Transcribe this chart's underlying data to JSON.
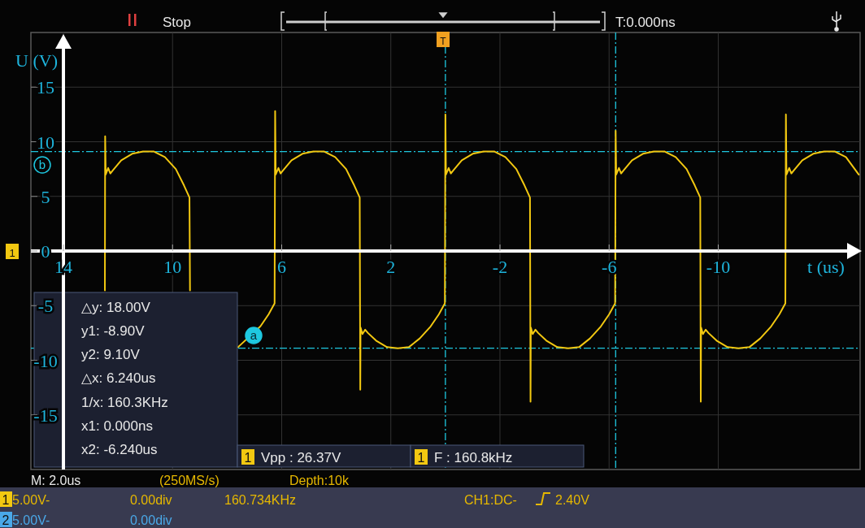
{
  "chart_data": {
    "type": "line",
    "xlabel": "t (us)",
    "ylabel": "U (V)",
    "xlim": [
      14,
      -15.2
    ],
    "xticks": [
      14,
      10,
      6,
      2,
      -2,
      -6,
      -10
    ],
    "ylim": [
      -20,
      20
    ],
    "yticks": [
      15,
      10,
      5,
      0,
      -5,
      -10,
      -15
    ],
    "grid": true,
    "series": [
      {
        "color": "#f2c811",
        "x": [
          12.48,
          12.47,
          12.45,
          12.36,
          12.28,
          12.18,
          11.88,
          11.48,
          11.08,
          10.68,
          10.28,
          9.88,
          9.58,
          9.38,
          9.36,
          9.3,
          7.6,
          6.78,
          6.48,
          6.26,
          6.24,
          6.22,
          6.12,
          6.04,
          5.94,
          5.64,
          5.24,
          4.84,
          4.44,
          4.04,
          3.64,
          3.34,
          3.14,
          3.12,
          3.11,
          3.04,
          2.94,
          2.84,
          2.54,
          2.14,
          1.74,
          1.34,
          0.94,
          0.54,
          0.24,
          0.02,
          0,
          -0.02,
          -0.12,
          -0.2,
          -0.3,
          -0.6,
          -1.0,
          -1.4,
          -1.8,
          -2.2,
          -2.6,
          -2.9,
          -3.1,
          -3.12,
          -3.13,
          -3.2,
          -3.3,
          -3.4,
          -3.7,
          -4.1,
          -4.5,
          -4.9,
          -5.3,
          -5.7,
          -6.0,
          -6.22,
          -6.24,
          -6.26,
          -6.36,
          -6.44,
          -6.54,
          -6.84,
          -7.24,
          -7.64,
          -8.04,
          -8.44,
          -8.84,
          -9.14,
          -9.34,
          -9.36,
          -9.37,
          -9.44,
          -9.54,
          -9.64,
          -9.94,
          -10.34,
          -10.74,
          -11.14,
          -11.54,
          -11.94,
          -12.24,
          -12.46,
          -12.48,
          -12.5,
          -12.6,
          -12.68,
          -12.78,
          -13.08,
          -13.48,
          -13.88,
          -14.28,
          -14.68,
          -15.15
        ],
        "values": [
          -3.6,
          10.5,
          7.0,
          7.6,
          7.1,
          7.4,
          8.3,
          8.9,
          9.1,
          9.1,
          8.6,
          7.5,
          6.0,
          4.9,
          -3.6,
          null,
          -8.8,
          -6.9,
          -5.8,
          -4.8,
          12.8,
          7.0,
          7.6,
          7.1,
          7.4,
          8.3,
          8.9,
          9.1,
          9.1,
          8.6,
          7.5,
          6.0,
          4.9,
          -12.7,
          -7.0,
          -7.6,
          -7.2,
          -7.5,
          -8.2,
          -8.8,
          -8.9,
          -8.8,
          -8.0,
          -6.9,
          -5.8,
          -4.8,
          12.5,
          7.0,
          7.6,
          7.1,
          7.4,
          8.3,
          8.9,
          9.1,
          9.1,
          8.6,
          7.5,
          6.0,
          4.9,
          -13.8,
          -7.0,
          -7.6,
          -7.2,
          -7.5,
          -8.2,
          -8.8,
          -8.9,
          -8.8,
          -8.0,
          -6.9,
          -5.8,
          -4.8,
          11.0,
          7.0,
          7.6,
          7.1,
          7.4,
          8.3,
          8.9,
          9.1,
          9.1,
          8.6,
          7.5,
          6.0,
          4.9,
          -13.8,
          -7.0,
          -7.6,
          -7.2,
          -7.5,
          -8.2,
          -8.8,
          -8.9,
          -8.8,
          -8.0,
          -6.9,
          -5.8,
          -4.8,
          12.5,
          7.0,
          7.6,
          7.1,
          7.4,
          8.3,
          8.9,
          9.1,
          9.1,
          8.6,
          7.0
        ]
      }
    ],
    "ref_lines": [
      {
        "axis": "y",
        "value": 9.1,
        "color": "#1ec8e0",
        "line_style": "dashed"
      },
      {
        "axis": "y",
        "value": -8.9,
        "color": "#1ec8e0",
        "line_style": "dashed"
      },
      {
        "axis": "x",
        "value": 0,
        "color": "#1ec8e0",
        "line_style": "dashed"
      },
      {
        "axis": "x",
        "value": -6.24,
        "color": "#1ec8e0",
        "line_style": "dashed"
      }
    ],
    "annotations": [
      "Stop",
      "T:0.000ns",
      "△y: 18.00V",
      "y1: -8.90V",
      "y2: 9.10V",
      "△x: 6.240us",
      "1/x: 160.3KHz",
      "x1: 0.000ns",
      "x2: -6.240us",
      "Vpp : 26.37V",
      "F : 160.8kHz",
      "M: 2.0us",
      "(250MS/s)",
      "Depth:10k",
      "5.00V-",
      "0.00div",
      "160.734KHz",
      "CH1:DC-",
      "2.40V",
      "5.00V-",
      "0.00div",
      "1",
      "1",
      "1",
      "2",
      "a",
      "b",
      "T",
      "1"
    ]
  }
}
